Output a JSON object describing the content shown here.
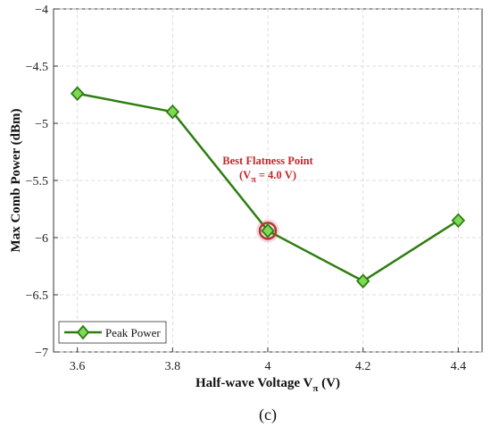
{
  "chart_data": {
    "type": "line",
    "title": "",
    "xlabel": "Half-wave Voltage V",
    "xlabel_sub": "π",
    "xlabel_unit": " (V)",
    "ylabel": "Max Comb Power (dBm)",
    "x": [
      3.6,
      3.8,
      4.0,
      4.2,
      4.4
    ],
    "series": [
      {
        "name": "Peak Power",
        "values": [
          -4.74,
          -4.9,
          -5.94,
          -6.38,
          -5.85
        ]
      }
    ],
    "xlim": [
      3.55,
      4.45
    ],
    "ylim": [
      -7,
      -4
    ],
    "xticks": [
      "3.6",
      "3.8",
      "4",
      "4.2",
      "4.4"
    ],
    "yticks": [
      "-4",
      "-4.5",
      "-5",
      "-5.5",
      "-6",
      "-6.5",
      "-7"
    ],
    "grid": true,
    "legend": "bottom-left",
    "annotation": {
      "line1": "Best Flatness Point",
      "line2_prefix": "(V",
      "line2_sub": "π",
      "line2_suffix": " = 4.0 V)",
      "x": 4.0,
      "y": -5.94
    },
    "colors": {
      "line": "#2e7d10",
      "marker_fill": "#7ed957",
      "highlight": "#b03a2e",
      "annotation": "#c0282b"
    }
  },
  "panel_label": "(c)"
}
